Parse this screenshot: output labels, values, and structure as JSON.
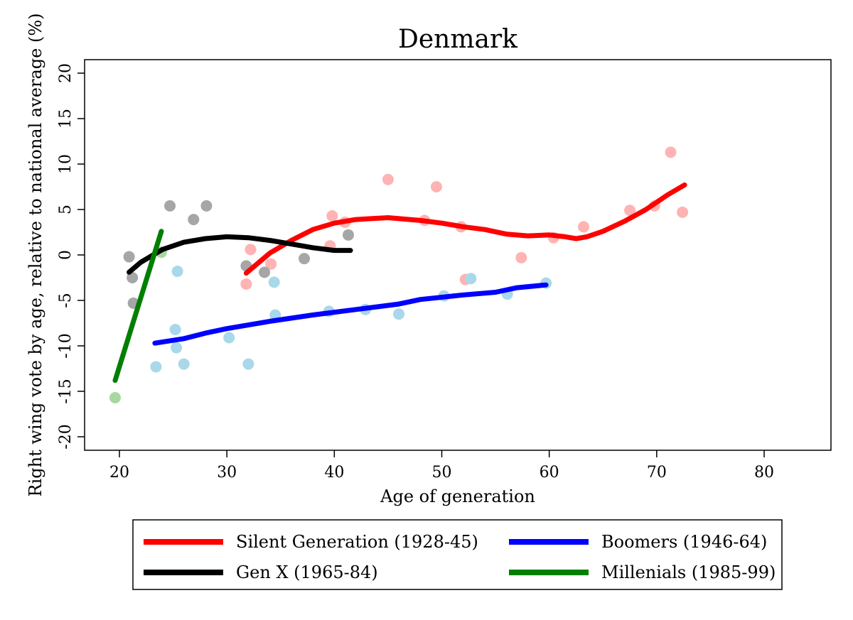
{
  "chart_data": {
    "type": "scatter",
    "title": "Denmark",
    "xlabel": "Age of generation",
    "ylabel": "Right wing vote by age, relative to national average (%)",
    "xlim": [
      17,
      86
    ],
    "ylim": [
      -21.5,
      21
    ],
    "x_ticks": [
      20,
      30,
      40,
      50,
      60,
      70,
      80
    ],
    "x_tick_labels": [
      "20",
      "30",
      "40",
      "50",
      "60",
      "70",
      "80"
    ],
    "y_ticks": [
      -20,
      -15,
      -10,
      -5,
      0,
      5,
      10,
      15,
      20
    ],
    "y_tick_labels": [
      "-20",
      "-15",
      "-10",
      "-5",
      "0",
      "5",
      "10",
      "15",
      "20"
    ],
    "grid": false,
    "legend_position": "bottom",
    "series": [
      {
        "name": "Silent Generation (1928-45)",
        "color": "#ff0000",
        "point_color": "#ffb3b3",
        "points": [
          [
            31.8,
            -3.2
          ],
          [
            32.2,
            0.6
          ],
          [
            34.1,
            -1.0
          ],
          [
            39.6,
            1.0
          ],
          [
            39.8,
            4.3
          ],
          [
            41.0,
            3.6
          ],
          [
            45.0,
            8.3
          ],
          [
            48.4,
            3.8
          ],
          [
            49.5,
            7.5
          ],
          [
            51.8,
            3.1
          ],
          [
            52.2,
            -2.7
          ],
          [
            57.4,
            -0.3
          ],
          [
            60.4,
            1.9
          ],
          [
            63.2,
            3.1
          ],
          [
            67.5,
            4.9
          ],
          [
            69.8,
            5.4
          ],
          [
            71.3,
            11.3
          ],
          [
            72.4,
            4.7
          ]
        ],
        "fit": [
          [
            31.8,
            -2.0
          ],
          [
            34,
            0.2
          ],
          [
            36,
            1.6
          ],
          [
            38,
            2.8
          ],
          [
            40,
            3.5
          ],
          [
            42,
            3.9
          ],
          [
            45,
            4.1
          ],
          [
            48,
            3.8
          ],
          [
            50,
            3.5
          ],
          [
            52,
            3.1
          ],
          [
            54,
            2.8
          ],
          [
            56,
            2.3
          ],
          [
            58,
            2.1
          ],
          [
            60,
            2.2
          ],
          [
            61.5,
            2.0
          ],
          [
            62.5,
            1.8
          ],
          [
            63.5,
            2.0
          ],
          [
            65,
            2.6
          ],
          [
            67,
            3.7
          ],
          [
            69,
            5.0
          ],
          [
            71,
            6.6
          ],
          [
            72.6,
            7.7
          ]
        ]
      },
      {
        "name": "Boomers (1946-64)",
        "color": "#0000ff",
        "point_color": "#a8d8ea",
        "points": [
          [
            23.4,
            -12.3
          ],
          [
            25.2,
            -8.2
          ],
          [
            25.3,
            -10.2
          ],
          [
            25.4,
            -1.8
          ],
          [
            26.0,
            -12.0
          ],
          [
            30.2,
            -9.1
          ],
          [
            32.0,
            -12.0
          ],
          [
            34.4,
            -3.0
          ],
          [
            34.5,
            -6.6
          ],
          [
            39.5,
            -6.2
          ],
          [
            42.9,
            -6.0
          ],
          [
            46.0,
            -6.5
          ],
          [
            50.2,
            -4.5
          ],
          [
            52.7,
            -2.6
          ],
          [
            56.1,
            -4.3
          ],
          [
            59.7,
            -3.1
          ]
        ],
        "fit": [
          [
            23.3,
            -9.7
          ],
          [
            26,
            -9.2
          ],
          [
            28,
            -8.6
          ],
          [
            30,
            -8.1
          ],
          [
            34,
            -7.3
          ],
          [
            38,
            -6.6
          ],
          [
            42,
            -6.0
          ],
          [
            46,
            -5.4
          ],
          [
            48,
            -4.9
          ],
          [
            52,
            -4.4
          ],
          [
            55,
            -4.1
          ],
          [
            57,
            -3.6
          ],
          [
            59.7,
            -3.3
          ]
        ]
      },
      {
        "name": "Gen X (1965-84)",
        "color": "#000000",
        "point_color": "#a6a6a6",
        "points": [
          [
            20.9,
            -0.2
          ],
          [
            21.2,
            -2.5
          ],
          [
            21.3,
            -5.3
          ],
          [
            24.7,
            5.4
          ],
          [
            26.9,
            3.9
          ],
          [
            28.1,
            5.4
          ],
          [
            31.8,
            -1.2
          ],
          [
            33.5,
            -1.9
          ],
          [
            37.2,
            -0.4
          ],
          [
            41.3,
            2.2
          ]
        ],
        "fit": [
          [
            20.9,
            -1.9
          ],
          [
            22,
            -0.8
          ],
          [
            24,
            0.6
          ],
          [
            26,
            1.4
          ],
          [
            28,
            1.8
          ],
          [
            30,
            2.0
          ],
          [
            32,
            1.9
          ],
          [
            34,
            1.6
          ],
          [
            36,
            1.2
          ],
          [
            38,
            0.8
          ],
          [
            40,
            0.5
          ],
          [
            41.5,
            0.5
          ]
        ]
      },
      {
        "name": "Millenials (1985-99)",
        "color": "#007f00",
        "point_color": "#a6d9a0",
        "points": [
          [
            19.6,
            -15.7
          ],
          [
            23.9,
            0.3
          ]
        ],
        "fit": [
          [
            19.6,
            -13.8
          ],
          [
            23.9,
            2.6
          ]
        ]
      }
    ]
  }
}
